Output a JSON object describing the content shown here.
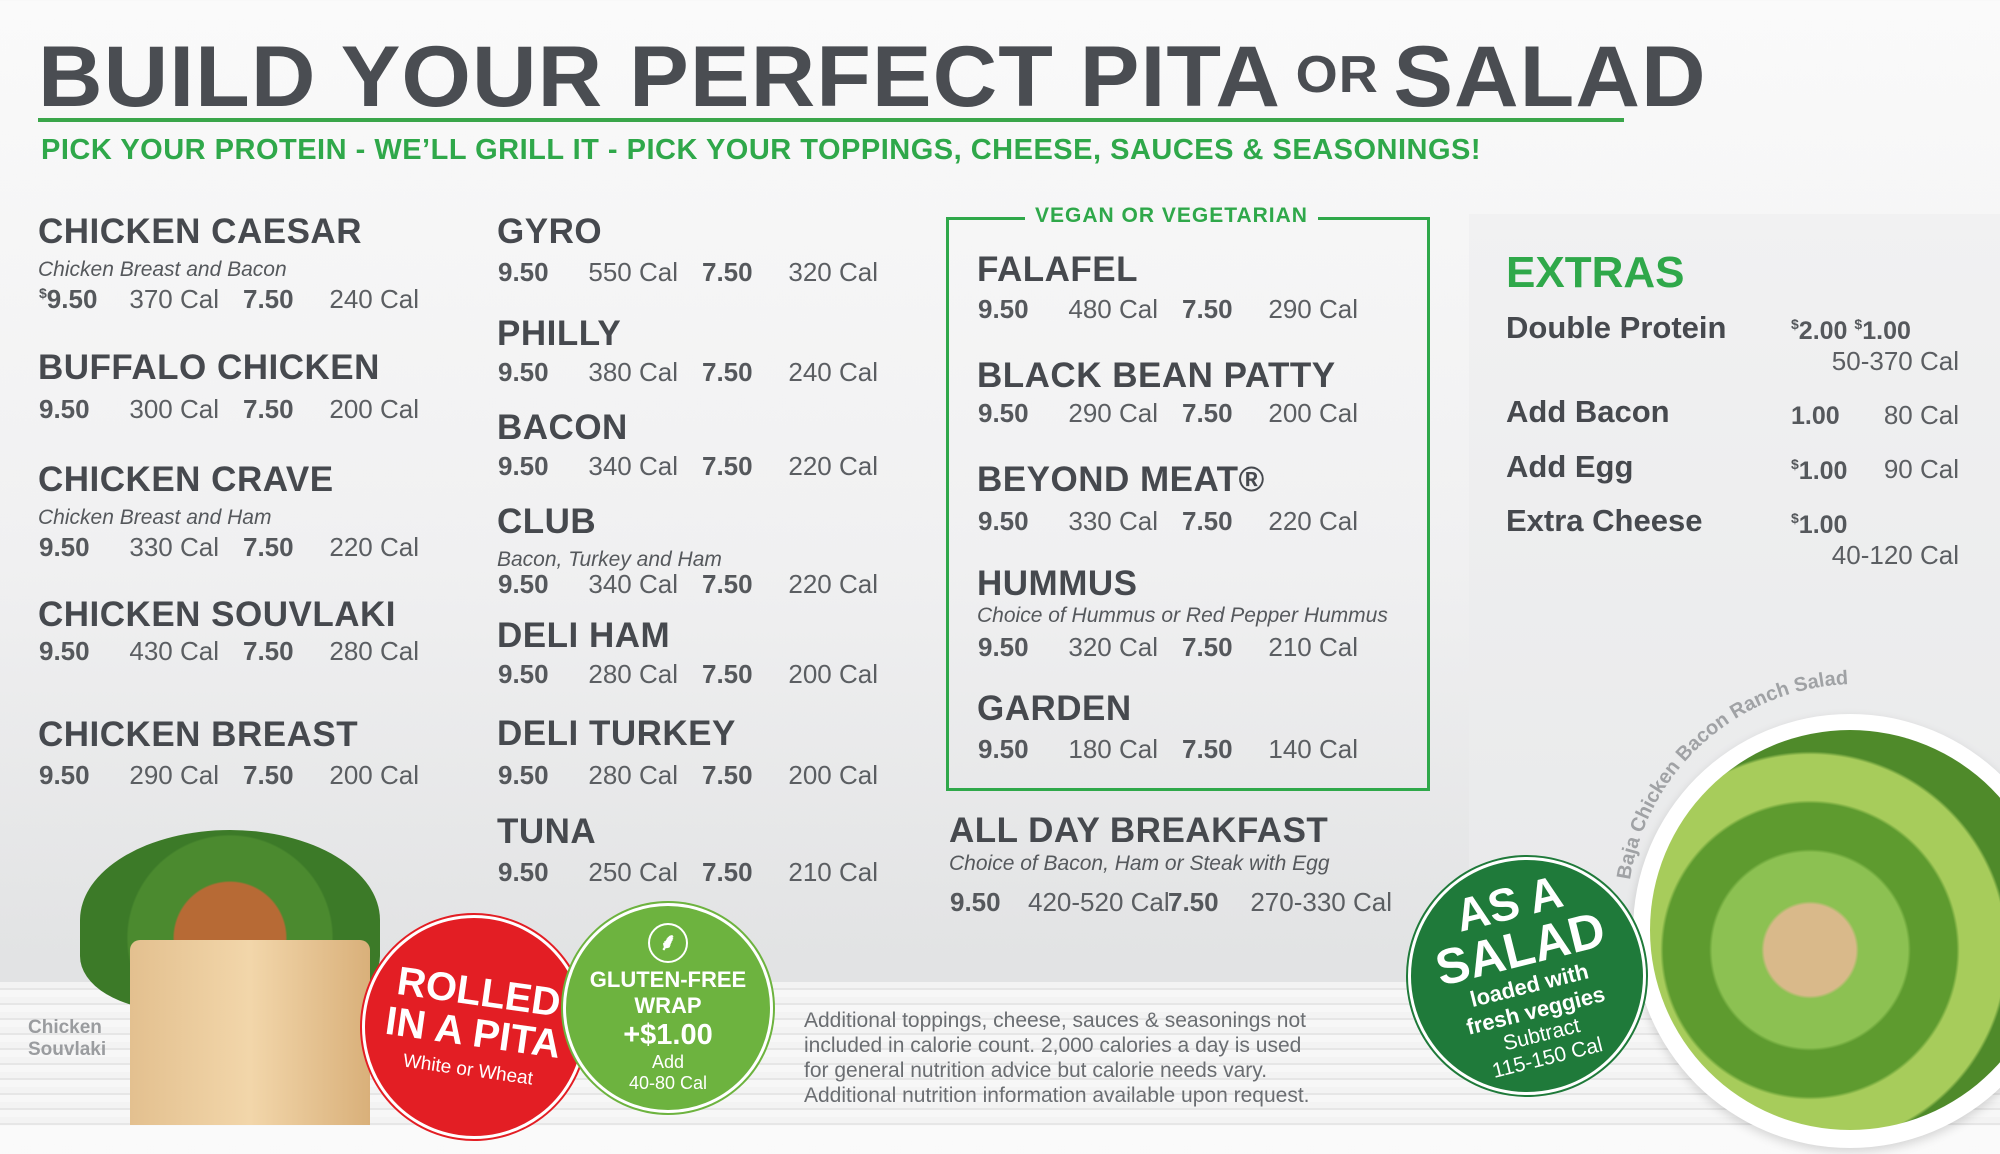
{
  "header": {
    "title_main": "BUILD YOUR PERFECT PITA",
    "title_or": "OR",
    "title_end": "SALAD",
    "subtitle": "PICK YOUR PROTEIN - WE’LL GRILL IT - PICK YOUR TOPPINGS, CHEESE, SAUCES & SEASONINGS!"
  },
  "column1": [
    {
      "name": "CHICKEN CAESAR",
      "desc": "Chicken Breast and Bacon",
      "pita_price": "9.50",
      "pita_cal": "370 Cal",
      "salad_price": "7.50",
      "salad_cal": "240 Cal",
      "currency": "$"
    },
    {
      "name": "BUFFALO CHICKEN",
      "pita_price": "9.50",
      "pita_cal": "300 Cal",
      "salad_price": "7.50",
      "salad_cal": "200 Cal"
    },
    {
      "name": "CHICKEN CRAVE",
      "desc": "Chicken Breast and Ham",
      "pita_price": "9.50",
      "pita_cal": "330 Cal",
      "salad_price": "7.50",
      "salad_cal": "220 Cal"
    },
    {
      "name": "CHICKEN SOUVLAKI",
      "pita_price": "9.50",
      "pita_cal": "430 Cal",
      "salad_price": "7.50",
      "salad_cal": "280 Cal"
    },
    {
      "name": "CHICKEN BREAST",
      "pita_price": "9.50",
      "pita_cal": "290 Cal",
      "salad_price": "7.50",
      "salad_cal": "200 Cal"
    }
  ],
  "column2": [
    {
      "name": "GYRO",
      "pita_price": "9.50",
      "pita_cal": "550 Cal",
      "salad_price": "7.50",
      "salad_cal": "320 Cal"
    },
    {
      "name": "PHILLY",
      "pita_price": "9.50",
      "pita_cal": "380 Cal",
      "salad_price": "7.50",
      "salad_cal": "240 Cal"
    },
    {
      "name": "BACON",
      "pita_price": "9.50",
      "pita_cal": "340 Cal",
      "salad_price": "7.50",
      "salad_cal": "220 Cal"
    },
    {
      "name": "CLUB",
      "desc": "Bacon, Turkey and Ham",
      "pita_price": "9.50",
      "pita_cal": "340 Cal",
      "salad_price": "7.50",
      "salad_cal": "220 Cal"
    },
    {
      "name": "DELI HAM",
      "pita_price": "9.50",
      "pita_cal": "280 Cal",
      "salad_price": "7.50",
      "salad_cal": "200 Cal"
    },
    {
      "name": "DELI TURKEY",
      "pita_price": "9.50",
      "pita_cal": "280 Cal",
      "salad_price": "7.50",
      "salad_cal": "200 Cal"
    },
    {
      "name": "TUNA",
      "pita_price": "9.50",
      "pita_cal": "250 Cal",
      "salad_price": "7.50",
      "salad_cal": "210 Cal"
    }
  ],
  "vegan": {
    "label": "VEGAN OR VEGETARIAN",
    "items": [
      {
        "name": "FALAFEL",
        "pita_price": "9.50",
        "pita_cal": "480 Cal",
        "salad_price": "7.50",
        "salad_cal": "290 Cal"
      },
      {
        "name": "BLACK BEAN PATTY",
        "pita_price": "9.50",
        "pita_cal": "290 Cal",
        "salad_price": "7.50",
        "salad_cal": "200 Cal"
      },
      {
        "name": "BEYOND MEAT®",
        "pita_price": "9.50",
        "pita_cal": "330 Cal",
        "salad_price": "7.50",
        "salad_cal": "220 Cal"
      },
      {
        "name": "HUMMUS",
        "desc": "Choice of Hummus or Red Pepper Hummus",
        "pita_price": "9.50",
        "pita_cal": "320 Cal",
        "salad_price": "7.50",
        "salad_cal": "210 Cal"
      },
      {
        "name": "GARDEN",
        "pita_price": "9.50",
        "pita_cal": "180 Cal",
        "salad_price": "7.50",
        "salad_cal": "140 Cal"
      }
    ]
  },
  "breakfast": {
    "name": "ALL DAY BREAKFAST",
    "desc": "Choice of Bacon, Ham or Steak with Egg",
    "pita_price": "9.50",
    "pita_cal": "420-520 Cal",
    "salad_price": "7.50",
    "salad_cal": "270-330 Cal"
  },
  "extras": {
    "title": "EXTRAS",
    "items": [
      {
        "name": "Double Protein",
        "price": "2.00",
        "price2": "1.00",
        "cal": "50-370 Cal"
      },
      {
        "name": "Add Bacon",
        "price": "1.00",
        "cal": "80 Cal"
      },
      {
        "name": "Add Egg",
        "price": "1.00",
        "cal": "90 Cal"
      },
      {
        "name": "Extra Cheese",
        "price": "1.00",
        "cal": "40-120 Cal"
      }
    ]
  },
  "badges": {
    "pita": {
      "line1": "ROLLED",
      "line2": "IN A PITA",
      "line3": "White or Wheat"
    },
    "gluten": {
      "line1": "GLUTEN-FREE",
      "line2": "WRAP",
      "line3": "+$1.00",
      "line4": "Add",
      "line5": "40-80 Cal",
      "icon": "wheat-icon"
    },
    "salad": {
      "line1": "AS A",
      "line2": "SALAD",
      "line3": "loaded with",
      "line4": "fresh veggies",
      "line5": "Subtract",
      "line6": "115-150 Cal"
    }
  },
  "photos": {
    "wrap_label": "Chicken Souvlaki",
    "salad_label": "Baja Chicken Bacon Ranch Salad"
  },
  "disclaimer": [
    "Additional toppings, cheese, sauces & seasonings not",
    "included in calorie count. 2,000 calories a day is used",
    "for general nutrition advice but calorie needs vary.",
    "Additional nutrition information available upon request."
  ],
  "colors": {
    "green": "#2fa84a",
    "text": "#4a4d52",
    "red": "#e31e24",
    "light_green": "#6db33f",
    "dark_green": "#1f7a3a"
  }
}
